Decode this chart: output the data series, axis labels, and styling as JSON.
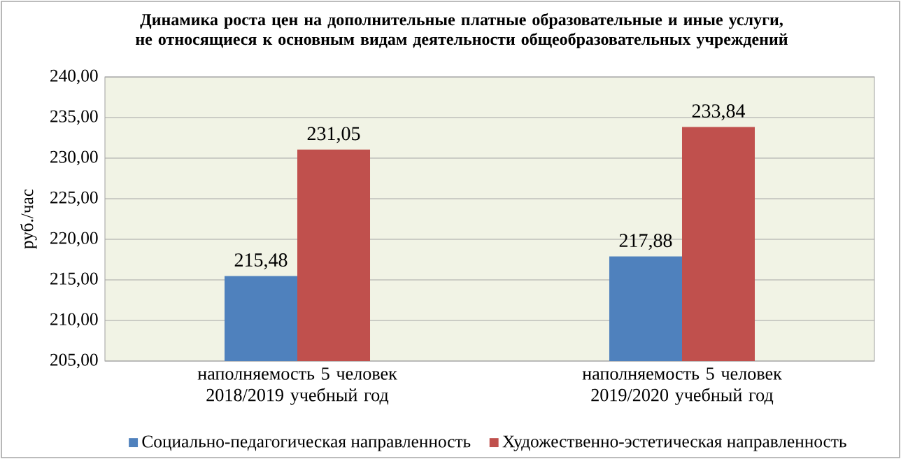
{
  "chart_data": {
    "type": "bar",
    "title": "Динамика роста  цен на дополнительные платные образовательные и иные услуги, не относящиеся к основным видам деятельности общеобразовательных учреждений",
    "ylabel": "руб./час",
    "categories": [
      "наполняемость  5 человек 2018/2019 учебный год",
      "наполняемость  5 человек 2019/2020 учебный год"
    ],
    "series": [
      {
        "name": "Социально-педагогическая  направленность",
        "color": "#4f81bd",
        "values": [
          215.48,
          217.88
        ],
        "value_labels": [
          "215,48",
          "217,88"
        ]
      },
      {
        "name": "Художественно-эстетическая  направленность",
        "color": "#c0504d",
        "values": [
          231.05,
          233.84
        ],
        "value_labels": [
          "231,05",
          "233,84"
        ]
      }
    ],
    "ylim": [
      205,
      240
    ],
    "yticks": [
      {
        "value": 205,
        "label": "205,00"
      },
      {
        "value": 210,
        "label": "210,00"
      },
      {
        "value": 215,
        "label": "215,00"
      },
      {
        "value": 220,
        "label": "220,00"
      },
      {
        "value": 225,
        "label": "225,00"
      },
      {
        "value": 230,
        "label": "230,00"
      },
      {
        "value": 235,
        "label": "235,00"
      },
      {
        "value": 240,
        "label": "240,00"
      }
    ],
    "grid": "y",
    "legend": "bottom"
  }
}
